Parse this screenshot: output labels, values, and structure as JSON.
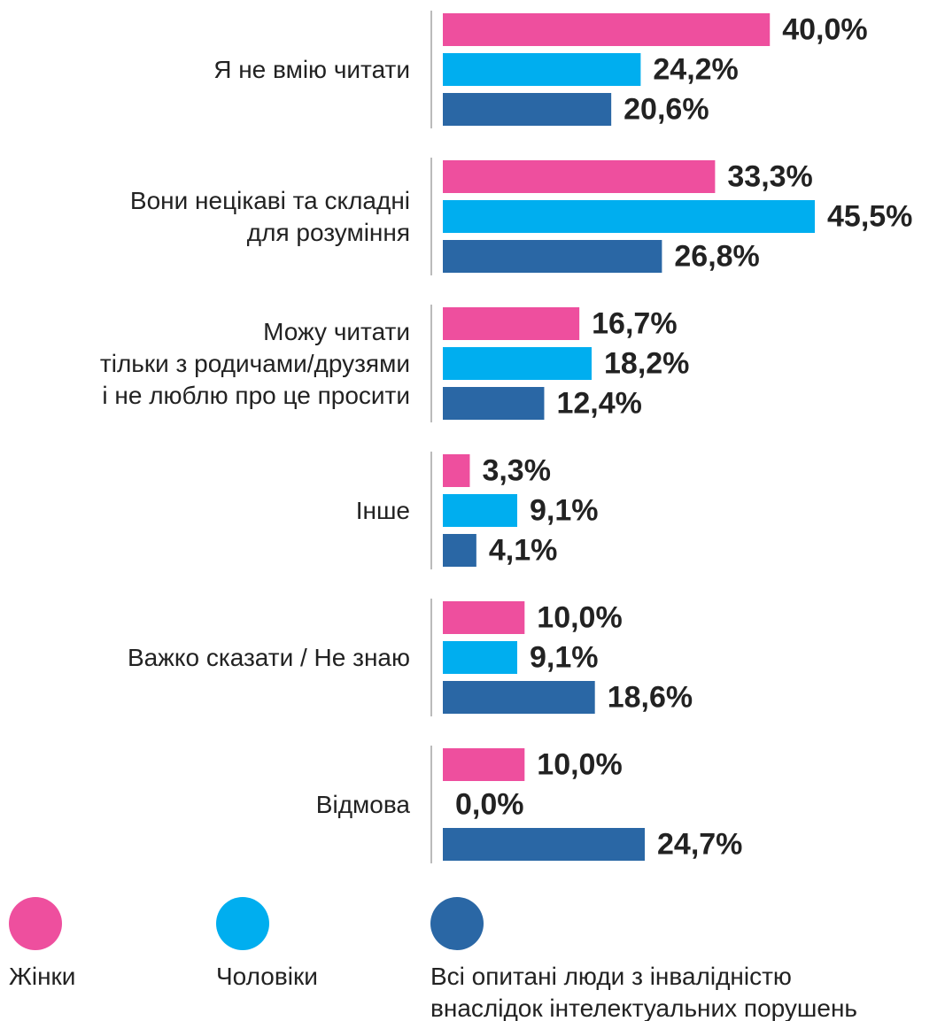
{
  "chart_data": {
    "type": "bar",
    "orientation": "horizontal",
    "categories": [
      "Я не вмію читати",
      "Вони нецікаві та складні\nдля розуміння",
      "Можу читати\nтільки з родичами/друзями\nі не люблю про це просити",
      "Інше",
      "Важко сказати / Не знаю",
      "Відмова"
    ],
    "series": [
      {
        "name": "Жінки",
        "color": "#ee4f9e",
        "values": [
          40.0,
          33.3,
          16.7,
          3.3,
          10.0,
          10.0
        ],
        "value_labels": [
          "40,0%",
          "33,3%",
          "16,7%",
          "3,3%",
          "10,0%",
          "10,0%"
        ]
      },
      {
        "name": "Чоловіки",
        "color": "#00aeef",
        "values": [
          24.2,
          45.5,
          18.2,
          9.1,
          9.1,
          0.0
        ],
        "value_labels": [
          "24,2%",
          "45,5%",
          "18,2%",
          "9,1%",
          "9,1%",
          "0,0%"
        ]
      },
      {
        "name": "Всі опитані люди з інвалідністю\nвнаслідок інтелектуальних порушень",
        "color": "#2a67a5",
        "values": [
          20.6,
          26.8,
          12.4,
          4.1,
          18.6,
          24.7
        ],
        "value_labels": [
          "20,6%",
          "26,8%",
          "12,4%",
          "4,1%",
          "18,6%",
          "24,7%"
        ]
      }
    ]
  }
}
